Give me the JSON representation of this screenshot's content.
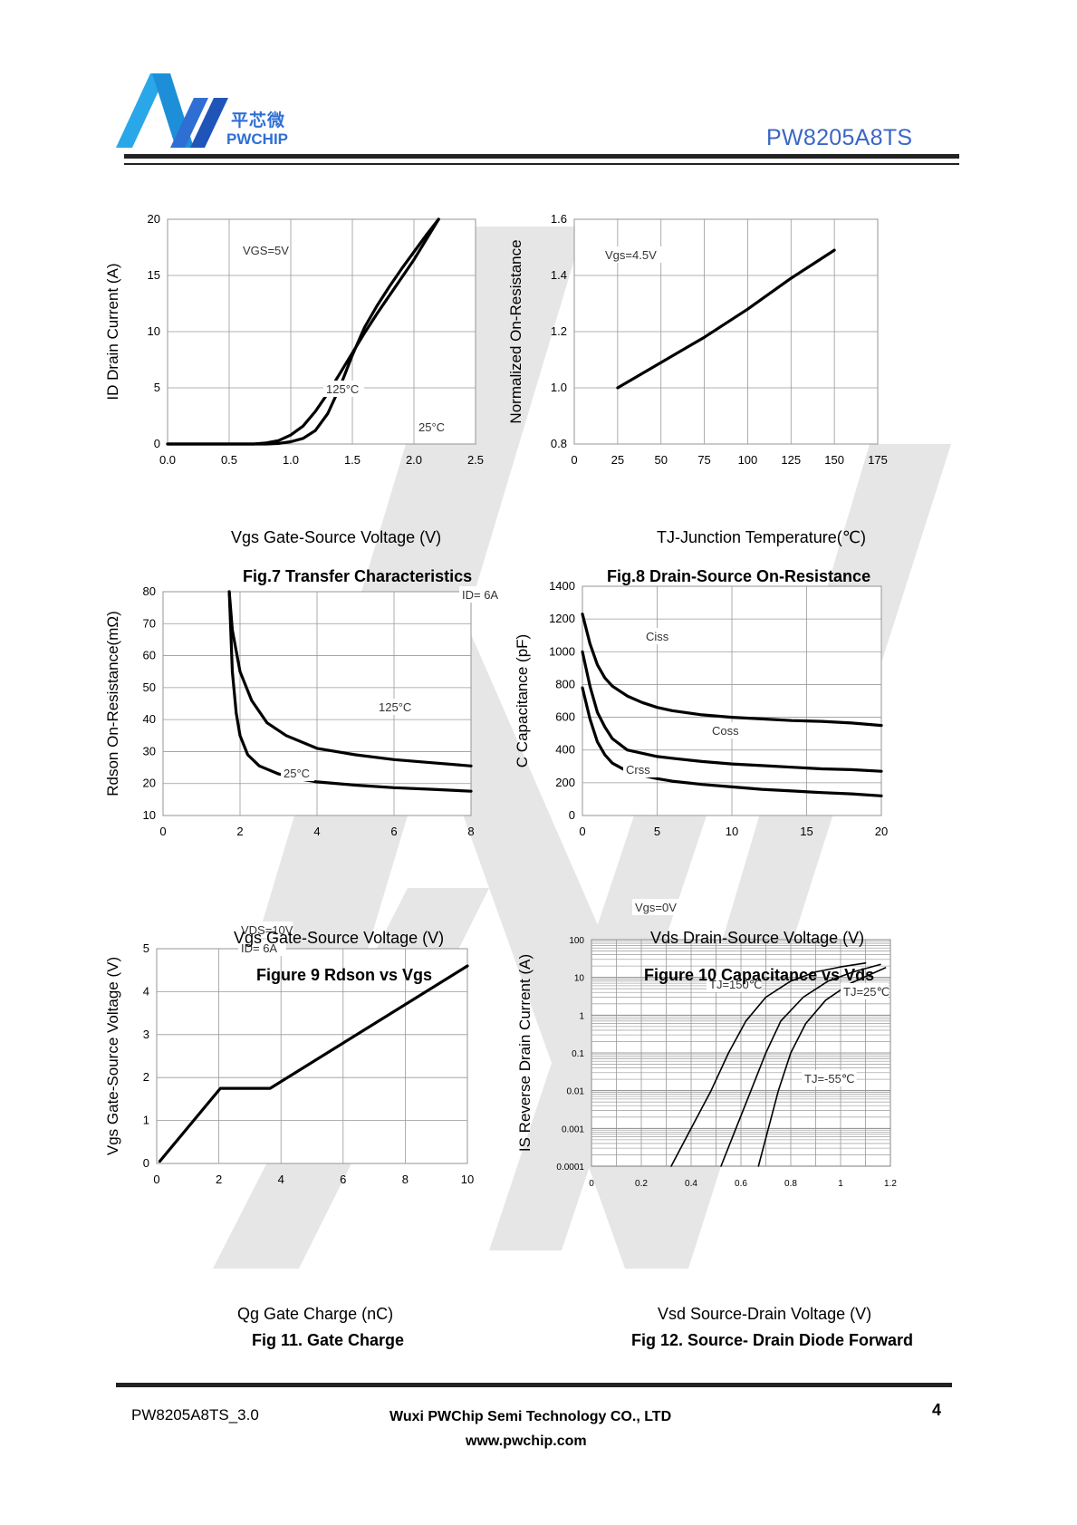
{
  "header": {
    "brand_cn": "平芯微",
    "brand_en": "PWCHIP",
    "part_number": "PW8205A8TS"
  },
  "figures": [
    {
      "xlabel": "Vgs Gate-Source Voltage (V)",
      "caption": "Fig.7 Transfer Characteristics"
    },
    {
      "xlabel": "TJ-Junction Temperature(℃)",
      "caption": "Fig.8 Drain-Source On-Resistance"
    },
    {
      "xlabel": "Vgs Gate-Source Voltage (V)",
      "caption": "Figure 9 Rdson vs Vgs"
    },
    {
      "xlabel": "Vds Drain-Source Voltage (V)",
      "caption": "Figure 10 Capacitance vs Vds"
    },
    {
      "xlabel": "Qg Gate Charge (nC)",
      "caption": "Fig 11. Gate Charge"
    },
    {
      "xlabel": "Vsd Source-Drain Voltage (V)",
      "caption": "Fig 12. Source- Drain Diode Forward"
    }
  ],
  "chart_data": [
    {
      "type": "line",
      "ylabel": "ID Drain Current (A)",
      "xlim": [
        0,
        2.5
      ],
      "ylim": [
        0,
        20
      ],
      "xticks": [
        "0.0",
        "0.5",
        "1.0",
        "1.5",
        "2.0",
        "2.5"
      ],
      "yticks": [
        "0",
        "5",
        "10",
        "15",
        "20"
      ],
      "grid": true,
      "annotations": [
        "VGS=5V",
        "125°C",
        "25°C"
      ],
      "series": [
        {
          "name": "125°C",
          "x": [
            0,
            0.7,
            0.8,
            0.9,
            1.0,
            1.1,
            1.2,
            1.3,
            1.4,
            1.5,
            1.6,
            1.7,
            1.8,
            1.9,
            2.0,
            2.1,
            2.2
          ],
          "y": [
            0,
            0,
            0.1,
            0.3,
            0.8,
            1.6,
            2.9,
            4.5,
            6.3,
            8.1,
            9.9,
            11.6,
            13.2,
            14.8,
            16.4,
            18.2,
            20
          ]
        },
        {
          "name": "25°C",
          "x": [
            0,
            0.8,
            0.9,
            1.0,
            1.1,
            1.2,
            1.3,
            1.4,
            1.5,
            1.6,
            1.7,
            1.8,
            1.9,
            2.0,
            2.1,
            2.2
          ],
          "y": [
            0,
            0,
            0.05,
            0.2,
            0.5,
            1.2,
            2.7,
            5.1,
            7.9,
            10.4,
            12.3,
            14.0,
            15.6,
            17.1,
            18.6,
            20
          ]
        }
      ]
    },
    {
      "type": "line",
      "ylabel": "Normalized On-Resistance",
      "xlim": [
        0,
        175
      ],
      "ylim": [
        0.8,
        1.6
      ],
      "xticks": [
        "0",
        "25",
        "50",
        "75",
        "100",
        "125",
        "150",
        "175"
      ],
      "yticks": [
        "0.8",
        "1.0",
        "1.2",
        "1.4",
        "1.6"
      ],
      "grid": true,
      "annotations": [
        "Vgs=4.5V"
      ],
      "series": [
        {
          "x": [
            25,
            50,
            75,
            100,
            125,
            150
          ],
          "y": [
            1.0,
            1.09,
            1.18,
            1.28,
            1.39,
            1.49
          ]
        }
      ]
    },
    {
      "type": "line",
      "ylabel": "Rdson On-Resistance(mΩ)",
      "xlim": [
        0,
        8
      ],
      "ylim": [
        10,
        80
      ],
      "xticks": [
        "0",
        "2",
        "4",
        "6",
        "8"
      ],
      "yticks": [
        "10",
        "20",
        "30",
        "40",
        "50",
        "60",
        "70",
        "80"
      ],
      "grid": true,
      "annotations": [
        "ID= 6A",
        "125°C",
        "25°C"
      ],
      "series": [
        {
          "name": "125°C",
          "x": [
            1.72,
            1.8,
            2.0,
            2.3,
            2.7,
            3.2,
            4.0,
            5.0,
            6.0,
            7.0,
            8.0
          ],
          "y": [
            80,
            68,
            55,
            46,
            39,
            35,
            31,
            29,
            27.5,
            26.5,
            25.5
          ]
        },
        {
          "name": "25°C",
          "x": [
            1.72,
            1.8,
            1.9,
            2.0,
            2.2,
            2.5,
            3.0,
            3.5,
            4.0,
            5.0,
            6.0,
            7.0,
            8.0
          ],
          "y": [
            80,
            55,
            42,
            35,
            29,
            25.5,
            23,
            21.5,
            20.5,
            19.5,
            18.7,
            18.2,
            17.6
          ]
        }
      ]
    },
    {
      "type": "line",
      "ylabel": "C Capacitance (pF)",
      "xlim": [
        0,
        20
      ],
      "ylim": [
        0,
        1400
      ],
      "xticks": [
        "0",
        "5",
        "10",
        "15",
        "20"
      ],
      "yticks": [
        "0",
        "200",
        "400",
        "600",
        "800",
        "1000",
        "1200",
        "1400"
      ],
      "grid": true,
      "annotations": [
        "Ciss",
        "Coss",
        "Crss"
      ],
      "series": [
        {
          "name": "Ciss",
          "x": [
            0,
            0.5,
            1,
            1.5,
            2,
            3,
            4,
            5,
            6,
            8,
            10,
            12,
            14,
            16,
            18,
            20
          ],
          "y": [
            1230,
            1050,
            920,
            840,
            790,
            730,
            690,
            660,
            640,
            615,
            600,
            590,
            580,
            575,
            565,
            550
          ]
        },
        {
          "name": "Coss",
          "x": [
            0,
            0.5,
            1,
            1.5,
            2,
            3,
            4,
            5,
            6,
            8,
            10,
            12,
            14,
            16,
            18,
            20
          ],
          "y": [
            1000,
            790,
            630,
            540,
            470,
            400,
            380,
            360,
            350,
            330,
            315,
            305,
            295,
            285,
            280,
            270
          ]
        },
        {
          "name": "Crss",
          "x": [
            0,
            0.5,
            1,
            1.5,
            2,
            3,
            4,
            5,
            6,
            8,
            10,
            12,
            14,
            16,
            18,
            20
          ],
          "y": [
            780,
            590,
            450,
            370,
            320,
            270,
            245,
            225,
            210,
            190,
            175,
            160,
            150,
            140,
            132,
            120
          ]
        }
      ]
    },
    {
      "type": "line",
      "ylabel": "Vgs Gate-Source Voltage (V)",
      "xlim": [
        0,
        10
      ],
      "ylim": [
        0,
        5
      ],
      "xticks": [
        "0",
        "2",
        "4",
        "6",
        "8",
        "10"
      ],
      "yticks": [
        "0",
        "1",
        "2",
        "3",
        "4",
        "5"
      ],
      "grid": true,
      "annotations": [
        "VDS=10V",
        "ID= 6A"
      ],
      "series": [
        {
          "x": [
            0.1,
            2.05,
            3.65,
            10
          ],
          "y": [
            0.05,
            1.75,
            1.75,
            4.6
          ]
        }
      ]
    },
    {
      "type": "line",
      "ylabel": "IS Reverse Drain Current (A)",
      "xlim": [
        0,
        1.2
      ],
      "ylim": [
        0.0001,
        100
      ],
      "yscale": "log",
      "xticks": [
        "0",
        "0.2",
        "0.4",
        "0.6",
        "0.8",
        "1",
        "1.2"
      ],
      "yticks": [
        "0.0001",
        "0.001",
        "0.01",
        "0.1",
        "1",
        "10",
        "100"
      ],
      "grid": true,
      "annotations": [
        "Vgs=0V",
        "TJ=150℃",
        "TJ=25℃",
        "TJ=-55℃"
      ],
      "series": [
        {
          "name": "TJ=150℃",
          "x": [
            0.32,
            0.4,
            0.48,
            0.55,
            0.62,
            0.7,
            0.8,
            0.9,
            1.0,
            1.1
          ],
          "y": [
            0.0001,
            0.001,
            0.01,
            0.1,
            0.7,
            3,
            8,
            14,
            19,
            24
          ]
        },
        {
          "name": "TJ=25℃",
          "x": [
            0.52,
            0.58,
            0.64,
            0.7,
            0.76,
            0.85,
            0.95,
            1.05,
            1.16
          ],
          "y": [
            0.0001,
            0.001,
            0.01,
            0.1,
            0.7,
            3,
            8,
            14,
            22
          ]
        },
        {
          "name": "TJ=-55℃",
          "x": [
            0.67,
            0.71,
            0.75,
            0.8,
            0.86,
            0.94,
            1.04,
            1.18
          ],
          "y": [
            0.0001,
            0.001,
            0.01,
            0.1,
            0.6,
            2.5,
            7,
            18
          ]
        }
      ]
    }
  ],
  "footer": {
    "doc_id": "PW8205A8TS_3.0",
    "company": "Wuxi PWChip Semi Technology CO., LTD",
    "url": "www.pwchip.com",
    "page": "4"
  }
}
